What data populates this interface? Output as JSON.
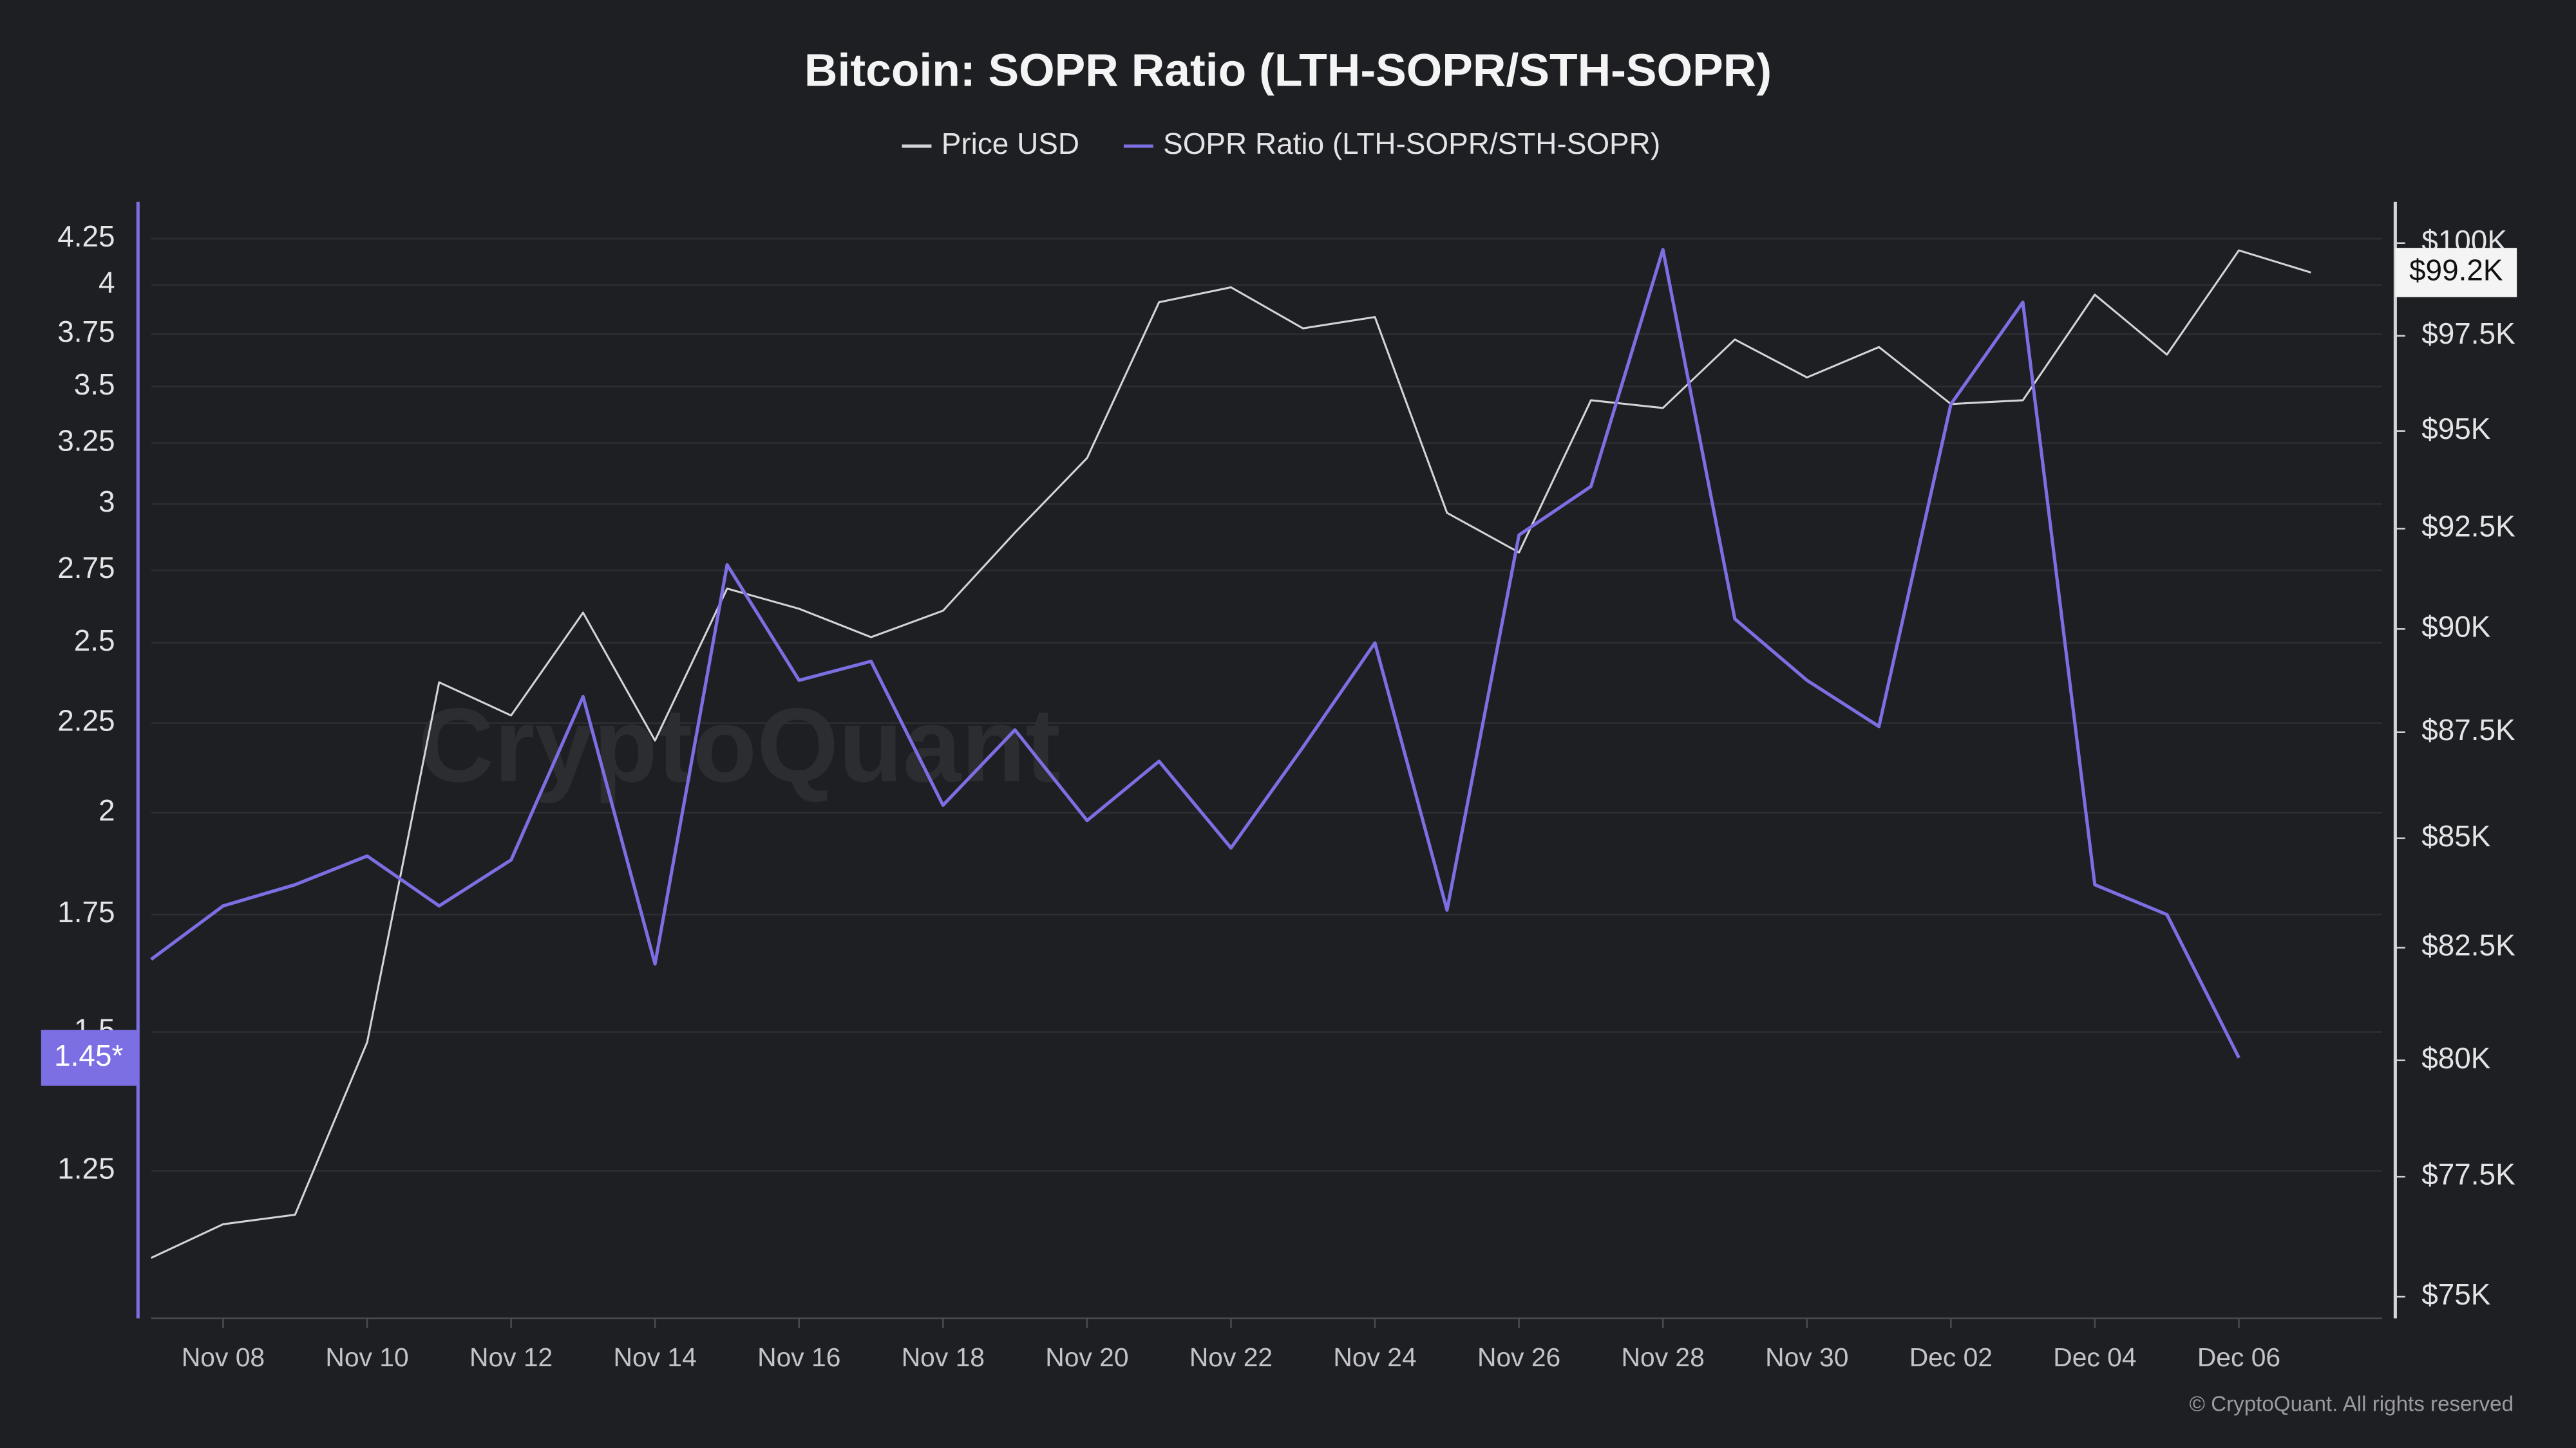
{
  "chart_data": {
    "type": "line",
    "title": "Bitcoin: SOPR Ratio (LTH-SOPR/STH-SOPR)",
    "watermark": "CryptoQuant",
    "footer": "© CryptoQuant. All rights reserved",
    "categories": [
      null,
      "Nov 08",
      null,
      "Nov 10",
      null,
      "Nov 12",
      null,
      "Nov 14",
      null,
      "Nov 16",
      null,
      "Nov 18",
      null,
      "Nov 20",
      null,
      "Nov 22",
      null,
      "Nov 24",
      null,
      "Nov 26",
      null,
      "Nov 28",
      null,
      "Nov 30",
      null,
      "Dec 02",
      null,
      "Dec 04",
      null,
      "Dec 06",
      null
    ],
    "series": [
      {
        "name": "Price USD",
        "color": "#d4d4d8",
        "axis": "y2",
        "last_label": "$99.2K",
        "values": [
          75800,
          76500,
          76700,
          80400,
          88700,
          87900,
          90400,
          87300,
          91000,
          90500,
          89800,
          90450,
          92400,
          94300,
          98400,
          98800,
          97700,
          98000,
          92900,
          91900,
          95800,
          95600,
          97400,
          96400,
          97200,
          95700,
          95800,
          98600,
          97000,
          99800,
          99200
        ]
      },
      {
        "name": "SOPR Ratio (LTH-SOPR/STH-SOPR)",
        "color": "#7b6fe3",
        "last_label": "1.45*",
        "values": [
          1.65,
          1.77,
          1.82,
          1.89,
          1.77,
          1.88,
          2.33,
          1.64,
          2.77,
          2.38,
          2.44,
          2.02,
          2.23,
          1.98,
          2.14,
          1.91,
          2.18,
          2.5,
          1.76,
          2.88,
          3.07,
          4.19,
          2.58,
          2.38,
          2.24,
          3.42,
          3.91,
          1.82,
          1.75,
          1.45,
          null
        ]
      }
    ],
    "ylog": true,
    "y2log": true,
    "grid": true,
    "ylim": [
      1.03,
      4.46
    ],
    "yticks": [
      1.25,
      1.5,
      1.75,
      2,
      2.25,
      2.5,
      2.75,
      3,
      3.25,
      3.5,
      3.75,
      4,
      4.25
    ],
    "y2lim": [
      74560,
      101130
    ],
    "y2ticks": [
      {
        "value": 75000,
        "label": "$75K"
      },
      {
        "value": 77500,
        "label": "$77.5K"
      },
      {
        "value": 80000,
        "label": "$80K"
      },
      {
        "value": 82500,
        "label": "$82.5K"
      },
      {
        "value": 85000,
        "label": "$85K"
      },
      {
        "value": 87500,
        "label": "$87.5K"
      },
      {
        "value": 90000,
        "label": "$90K"
      },
      {
        "value": 92500,
        "label": "$92.5K"
      },
      {
        "value": 95000,
        "label": "$95K"
      },
      {
        "value": 97500,
        "label": "$97.5K"
      },
      {
        "value": 100000,
        "label": "$100K"
      }
    ]
  }
}
